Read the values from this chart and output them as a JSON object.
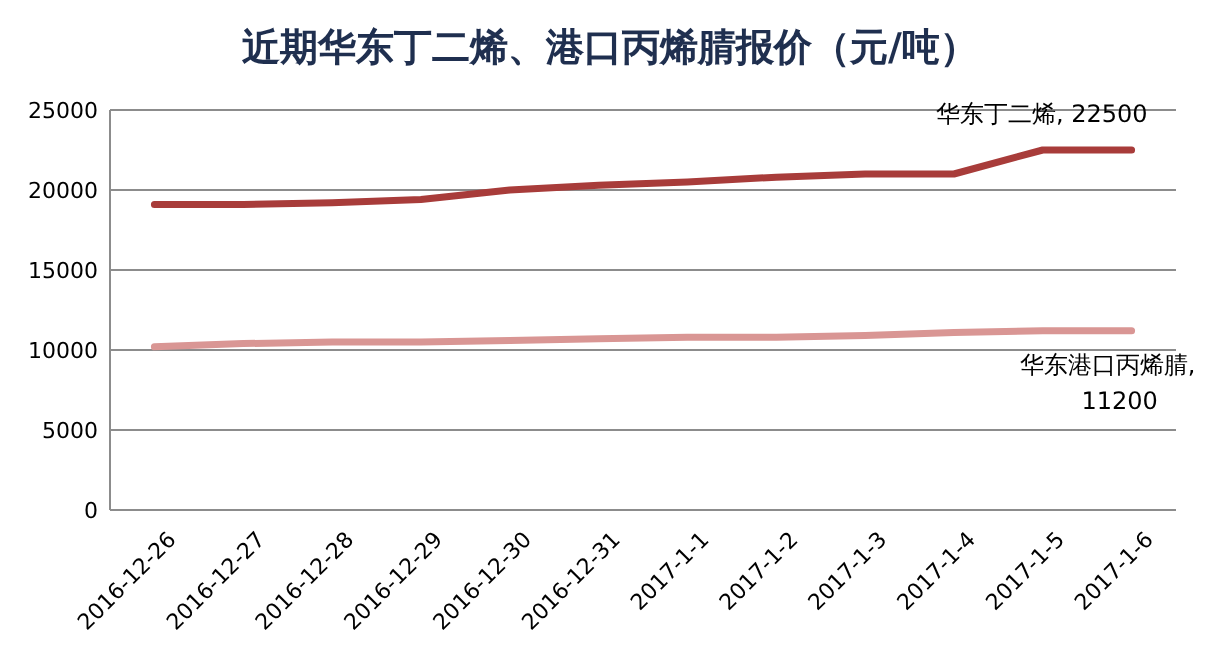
{
  "chart_data": {
    "type": "line",
    "title": "近期华东丁二烯、港口丙烯腈报价（元/吨）",
    "categories": [
      "2016-12-26",
      "2016-12-27",
      "2016-12-28",
      "2016-12-29",
      "2016-12-30",
      "2016-12-31",
      "2017-1-1",
      "2017-1-2",
      "2017-1-3",
      "2017-1-4",
      "2017-1-5",
      "2017-1-6"
    ],
    "series": [
      {
        "color": "#a83c3a",
        "values": [
          19100,
          19100,
          19200,
          19400,
          20000,
          20300,
          20500,
          20800,
          21000,
          21000,
          22500,
          22500
        ]
      },
      {
        "color": "#d99694",
        "values": [
          10200,
          10400,
          10500,
          10500,
          10600,
          10700,
          10800,
          10800,
          10900,
          11100,
          11200,
          11200
        ]
      }
    ],
    "annotations": [
      {
        "text": "华东丁二烯, 22500",
        "x": "2017-1-6",
        "y": 22500
      },
      {
        "text": "华东港口丙烯腈, 11200",
        "x": "2017-1-6",
        "y": 11200
      }
    ],
    "ylim": [
      0,
      25000
    ],
    "yticks": [
      0,
      5000,
      10000,
      15000,
      20000,
      25000
    ],
    "grid": "y",
    "legend": false,
    "marker": "none",
    "line_style": "solid"
  }
}
